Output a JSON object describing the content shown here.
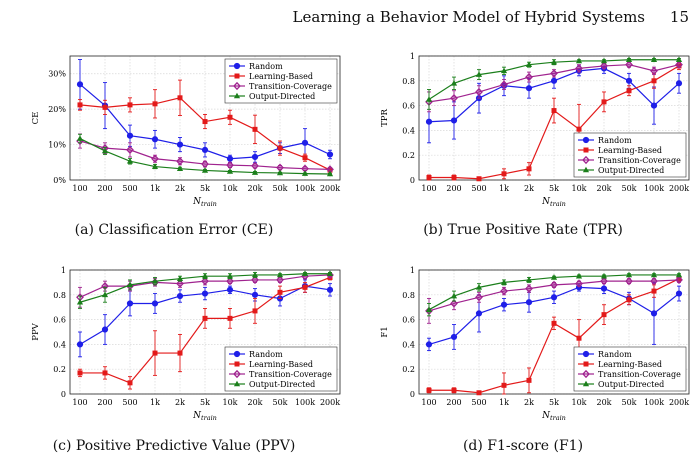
{
  "header": {
    "running_title": "Learning a Behavior Model of Hybrid Systems",
    "page_number": "15"
  },
  "legend_labels": [
    "Random",
    "Learning-Based",
    "Transition-Coverage",
    "Output-Directed"
  ],
  "colors": {
    "Random": "#1f1fe8",
    "Learning-Based": "#e31a1a",
    "Transition-Coverage": "#a0238f",
    "Output-Directed": "#1b7f1b"
  },
  "chart_data": [
    {
      "type": "line",
      "caption": "(a) Classification Error (CE)",
      "ylabel": "CE",
      "xlabel": "N_train",
      "categories": [
        "100",
        "200",
        "500",
        "1k",
        "2k",
        "5k",
        "10k",
        "20k",
        "50k",
        "100k",
        "200k"
      ],
      "yticks": [
        "0%",
        "10%",
        "20%",
        "30%"
      ],
      "ylim": [
        0,
        0.35
      ],
      "legend": "top-right",
      "series": [
        {
          "name": "Random",
          "values": [
            0.27,
            0.21,
            0.125,
            0.115,
            0.1,
            0.085,
            0.06,
            0.065,
            0.09,
            0.105,
            0.072
          ],
          "err": [
            0.07,
            0.065,
            0.03,
            0.025,
            0.02,
            0.02,
            0.01,
            0.015,
            0.015,
            0.04,
            0.012
          ]
        },
        {
          "name": "Learning-Based",
          "values": [
            0.212,
            0.205,
            0.212,
            0.215,
            0.232,
            0.165,
            0.177,
            0.143,
            0.09,
            0.063,
            0.028
          ],
          "err": [
            0.015,
            0.02,
            0.02,
            0.04,
            0.05,
            0.02,
            0.02,
            0.04,
            0.02,
            0.01,
            0.005
          ]
        },
        {
          "name": "Transition-Coverage",
          "values": [
            0.11,
            0.09,
            0.085,
            0.06,
            0.053,
            0.045,
            0.042,
            0.04,
            0.035,
            0.032,
            0.03
          ],
          "err": [
            0.02,
            0.015,
            0.02,
            0.01,
            0.01,
            0.008,
            0.007,
            0.006,
            0.006,
            0.005,
            0.005
          ]
        },
        {
          "name": "Output-Directed",
          "values": [
            0.117,
            0.082,
            0.053,
            0.038,
            0.032,
            0.027,
            0.024,
            0.021,
            0.02,
            0.018,
            0.017
          ],
          "err": [
            0.012,
            0.01,
            0.008,
            0.006,
            0.004,
            0.003,
            0.003,
            0.003,
            0.002,
            0.002,
            0.002
          ]
        }
      ]
    },
    {
      "type": "line",
      "caption": "(b) True Positive Rate (TPR)",
      "ylabel": "TPR",
      "xlabel": "N_train",
      "categories": [
        "100",
        "200",
        "500",
        "1k",
        "2k",
        "5k",
        "10k",
        "20k",
        "50k",
        "100k",
        "200k"
      ],
      "yticks": [
        "0",
        "0.2",
        "0.4",
        "0.6",
        "0.8",
        "1"
      ],
      "ylim": [
        0,
        1
      ],
      "legend": "bottom-right",
      "series": [
        {
          "name": "Random",
          "values": [
            0.47,
            0.48,
            0.66,
            0.76,
            0.74,
            0.8,
            0.88,
            0.9,
            0.8,
            0.6,
            0.78
          ],
          "err": [
            0.17,
            0.15,
            0.12,
            0.08,
            0.08,
            0.06,
            0.04,
            0.04,
            0.06,
            0.15,
            0.08
          ]
        },
        {
          "name": "Learning-Based",
          "values": [
            0.02,
            0.02,
            0.01,
            0.05,
            0.09,
            0.56,
            0.41,
            0.63,
            0.72,
            0.8,
            0.92
          ],
          "err": [
            0.02,
            0.02,
            0.01,
            0.04,
            0.05,
            0.1,
            0.2,
            0.08,
            0.04,
            0.06,
            0.03
          ]
        },
        {
          "name": "Transition-Coverage",
          "values": [
            0.63,
            0.66,
            0.71,
            0.77,
            0.83,
            0.86,
            0.9,
            0.92,
            0.93,
            0.88,
            0.93
          ],
          "err": [
            0.08,
            0.06,
            0.05,
            0.04,
            0.04,
            0.03,
            0.03,
            0.02,
            0.02,
            0.03,
            0.02
          ]
        },
        {
          "name": "Output-Directed",
          "values": [
            0.65,
            0.78,
            0.85,
            0.88,
            0.93,
            0.95,
            0.96,
            0.96,
            0.97,
            0.97,
            0.97
          ],
          "err": [
            0.08,
            0.05,
            0.04,
            0.03,
            0.02,
            0.02,
            0.01,
            0.01,
            0.01,
            0.01,
            0.01
          ]
        }
      ]
    },
    {
      "type": "line",
      "caption": "(c) Positive Predictive Value (PPV)",
      "ylabel": "PPV",
      "xlabel": "N_train",
      "categories": [
        "100",
        "200",
        "500",
        "1k",
        "2k",
        "5k",
        "10k",
        "20k",
        "50k",
        "100k",
        "200k"
      ],
      "yticks": [
        "0",
        "0.2",
        "0.4",
        "0.6",
        "0.8",
        "1"
      ],
      "ylim": [
        0,
        1
      ],
      "legend": "bottom-right",
      "series": [
        {
          "name": "Random",
          "values": [
            0.4,
            0.52,
            0.73,
            0.73,
            0.79,
            0.81,
            0.84,
            0.8,
            0.77,
            0.87,
            0.84
          ],
          "err": [
            0.1,
            0.12,
            0.1,
            0.08,
            0.05,
            0.05,
            0.03,
            0.05,
            0.06,
            0.05,
            0.05
          ]
        },
        {
          "name": "Learning-Based",
          "values": [
            0.17,
            0.17,
            0.09,
            0.33,
            0.33,
            0.61,
            0.61,
            0.67,
            0.82,
            0.86,
            0.94
          ],
          "err": [
            0.03,
            0.05,
            0.05,
            0.18,
            0.15,
            0.08,
            0.08,
            0.1,
            0.05,
            0.04,
            0.02
          ]
        },
        {
          "name": "Transition-Coverage",
          "values": [
            0.78,
            0.87,
            0.87,
            0.9,
            0.89,
            0.91,
            0.91,
            0.92,
            0.92,
            0.95,
            0.96
          ],
          "err": [
            0.08,
            0.04,
            0.04,
            0.03,
            0.03,
            0.03,
            0.02,
            0.02,
            0.02,
            0.02,
            0.02
          ]
        },
        {
          "name": "Output-Directed",
          "values": [
            0.74,
            0.8,
            0.88,
            0.91,
            0.93,
            0.95,
            0.95,
            0.96,
            0.96,
            0.97,
            0.97
          ],
          "err": [
            0.05,
            0.06,
            0.04,
            0.03,
            0.02,
            0.02,
            0.02,
            0.02,
            0.01,
            0.01,
            0.01
          ]
        }
      ]
    },
    {
      "type": "line",
      "caption": "(d) F1-score (F1)",
      "ylabel": "F1",
      "xlabel": "N_train",
      "categories": [
        "100",
        "200",
        "500",
        "1k",
        "2k",
        "5k",
        "10k",
        "20k",
        "50k",
        "100k",
        "200k"
      ],
      "yticks": [
        "0",
        "0.2",
        "0.4",
        "0.6",
        "0.8",
        "1"
      ],
      "ylim": [
        0,
        1
      ],
      "legend": "bottom-right",
      "series": [
        {
          "name": "Random",
          "values": [
            0.4,
            0.46,
            0.65,
            0.72,
            0.74,
            0.78,
            0.86,
            0.85,
            0.77,
            0.65,
            0.81
          ],
          "err": [
            0.05,
            0.1,
            0.15,
            0.05,
            0.08,
            0.05,
            0.03,
            0.04,
            0.05,
            0.25,
            0.06
          ]
        },
        {
          "name": "Learning-Based",
          "values": [
            0.03,
            0.03,
            0.01,
            0.07,
            0.11,
            0.57,
            0.45,
            0.64,
            0.76,
            0.83,
            0.93
          ],
          "err": [
            0.02,
            0.02,
            0.01,
            0.1,
            0.1,
            0.05,
            0.15,
            0.08,
            0.04,
            0.05,
            0.02
          ]
        },
        {
          "name": "Transition-Coverage",
          "values": [
            0.67,
            0.73,
            0.78,
            0.83,
            0.85,
            0.88,
            0.89,
            0.91,
            0.91,
            0.91,
            0.92
          ],
          "err": [
            0.1,
            0.05,
            0.04,
            0.03,
            0.03,
            0.02,
            0.02,
            0.02,
            0.02,
            0.02,
            0.02
          ]
        },
        {
          "name": "Output-Directed",
          "values": [
            0.68,
            0.79,
            0.86,
            0.9,
            0.92,
            0.94,
            0.95,
            0.95,
            0.96,
            0.96,
            0.96
          ],
          "err": [
            0.05,
            0.04,
            0.03,
            0.02,
            0.02,
            0.01,
            0.01,
            0.01,
            0.01,
            0.01,
            0.01
          ]
        }
      ]
    }
  ]
}
